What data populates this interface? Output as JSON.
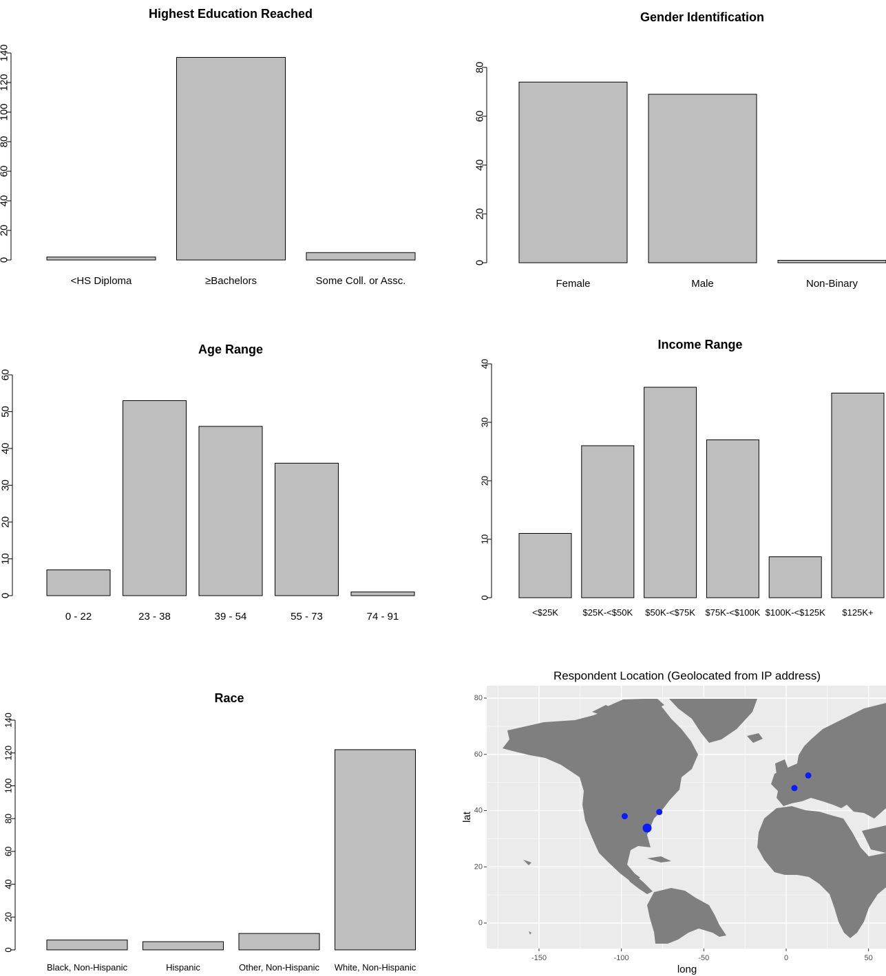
{
  "chart_data": [
    {
      "id": "education",
      "type": "bar",
      "title": "Highest Education Reached",
      "categories": [
        "<HS Diploma",
        "≥Bachelors",
        "Some Coll. or Assc."
      ],
      "values": [
        2,
        137,
        5
      ],
      "ylim": [
        0,
        140
      ],
      "yticks": [
        0,
        20,
        40,
        60,
        80,
        100,
        120,
        140
      ],
      "xlabel": "",
      "ylabel": "",
      "grid": false
    },
    {
      "id": "gender",
      "type": "bar",
      "title": "Gender Identification",
      "categories": [
        "Female",
        "Male",
        "Non-Binary"
      ],
      "values": [
        74,
        69,
        1
      ],
      "ylim": [
        0,
        80
      ],
      "yticks": [
        0,
        20,
        40,
        60,
        80
      ],
      "xlabel": "",
      "ylabel": "",
      "grid": false
    },
    {
      "id": "age",
      "type": "bar",
      "title": "Age Range",
      "categories": [
        "0 - 22",
        "23 - 38",
        "39 - 54",
        "55 - 73",
        "74 - 91"
      ],
      "values": [
        7,
        53,
        46,
        36,
        1
      ],
      "ylim": [
        0,
        60
      ],
      "yticks": [
        0,
        10,
        20,
        30,
        40,
        50,
        60
      ],
      "xlabel": "",
      "ylabel": "",
      "grid": false
    },
    {
      "id": "income",
      "type": "bar",
      "title": "Income Range",
      "categories": [
        "<$25K",
        "$25K-<$50K",
        "$50K-<$75K",
        "$75K-<$100K",
        "$100K-<$125K",
        "$125K+"
      ],
      "values": [
        11,
        26,
        36,
        27,
        7,
        35
      ],
      "ylim": [
        0,
        40
      ],
      "yticks": [
        0,
        10,
        20,
        30,
        40
      ],
      "xlabel": "",
      "ylabel": "",
      "grid": false
    },
    {
      "id": "race",
      "type": "bar",
      "title": "Race",
      "categories": [
        "Black, Non-Hispanic",
        "Hispanic",
        "Other, Non-Hispanic",
        "White, Non-Hispanic"
      ],
      "values": [
        6,
        5,
        10,
        122
      ],
      "ylim": [
        0,
        140
      ],
      "yticks": [
        0,
        20,
        40,
        60,
        80,
        100,
        120,
        140
      ],
      "xlabel": "",
      "ylabel": "",
      "grid": false
    },
    {
      "id": "location",
      "type": "scatter",
      "title": "Respondent Location (Geolocated from IP address)",
      "xlabel": "long",
      "ylabel": "lat",
      "xlim": [
        -175,
        55
      ],
      "ylim": [
        -8,
        84
      ],
      "xticks": [
        -150,
        -100,
        -50,
        0,
        50
      ],
      "yticks": [
        0,
        20,
        40,
        60,
        80
      ],
      "grid": true,
      "background": "#ebebeb",
      "land_color": "#7f7f7f",
      "point_color": "#0a1cff",
      "points": [
        {
          "x": -98,
          "y": 38,
          "size": 1
        },
        {
          "x": -77,
          "y": 39.5,
          "size": 1
        },
        {
          "x": -84.4,
          "y": 33.8,
          "size": 2
        },
        {
          "x": 5,
          "y": 48,
          "size": 1
        },
        {
          "x": 13.4,
          "y": 52.5,
          "size": 1
        }
      ]
    }
  ]
}
